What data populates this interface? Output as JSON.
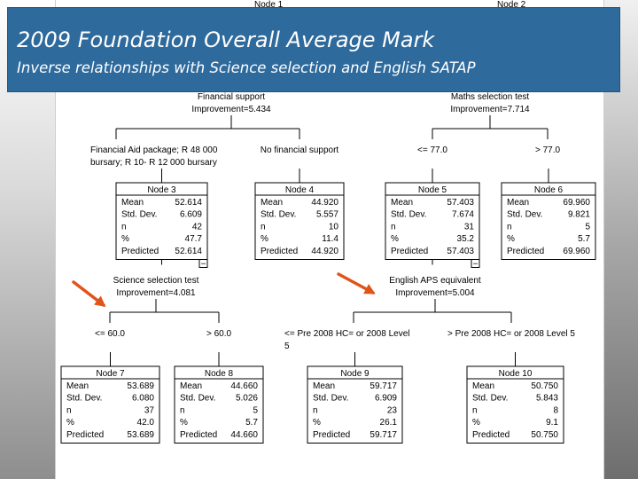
{
  "slide": {
    "title": "2009 Foundation Overall Average Mark",
    "subtitle": "Inverse relationships with Science selection and English SATAP"
  },
  "colors": {
    "banner": "#2e6a9c",
    "arrow": "#e0541a",
    "node_border": "#000000"
  },
  "tree": {
    "partial_top_nodes": [
      "Node 1",
      "Node 2"
    ],
    "splits": [
      {
        "id": "split-financial",
        "variable": "Financial support",
        "improvement": "Improvement=5.434",
        "left_branch": [
          "Financial Aid package; R 48 000",
          "bursary; R 10- R 12 000 bursary"
        ],
        "right_branch": [
          "No financial support"
        ]
      },
      {
        "id": "split-maths",
        "variable": "Maths selection test",
        "improvement": "Improvement=7.714",
        "left_branch": [
          "<= 77.0"
        ],
        "right_branch": [
          "> 77.0"
        ]
      },
      {
        "id": "split-science",
        "variable": "Science selection test",
        "improvement": "Improvement=4.081",
        "left_branch": [
          "<= 60.0"
        ],
        "right_branch": [
          "> 60.0"
        ]
      },
      {
        "id": "split-english",
        "variable": "English APS equivalent",
        "improvement": "Improvement=5.004",
        "left_branch": [
          "<= Pre 2008 HC=  or 2008 Level",
          "5"
        ],
        "right_branch": [
          "> Pre 2008 HC=  or 2008 Level 5"
        ]
      }
    ],
    "row_labels": [
      "Mean",
      "Std. Dev.",
      "n",
      "%",
      "Predicted"
    ],
    "nodes": [
      {
        "id": "node-3",
        "title": "Node 3",
        "values": [
          "52.614",
          "6.609",
          "42",
          "47.7",
          "52.614"
        ],
        "expanded": true
      },
      {
        "id": "node-4",
        "title": "Node 4",
        "values": [
          "44.920",
          "5.557",
          "10",
          "11.4",
          "44.920"
        ],
        "expanded": false
      },
      {
        "id": "node-5",
        "title": "Node 5",
        "values": [
          "57.403",
          "7.674",
          "31",
          "35.2",
          "57.403"
        ],
        "expanded": true
      },
      {
        "id": "node-6",
        "title": "Node 6",
        "values": [
          "69.960",
          "9.821",
          "5",
          "5.7",
          "69.960"
        ],
        "expanded": false
      },
      {
        "id": "node-7",
        "title": "Node 7",
        "values": [
          "53.689",
          "6.080",
          "37",
          "42.0",
          "53.689"
        ],
        "expanded": false
      },
      {
        "id": "node-8",
        "title": "Node 8",
        "values": [
          "44.660",
          "5.026",
          "5",
          "5.7",
          "44.660"
        ],
        "expanded": false
      },
      {
        "id": "node-9",
        "title": "Node 9",
        "values": [
          "59.717",
          "6.909",
          "23",
          "26.1",
          "59.717"
        ],
        "expanded": false
      },
      {
        "id": "node-10",
        "title": "Node 10",
        "values": [
          "50.750",
          "5.843",
          "8",
          "9.1",
          "50.750"
        ],
        "expanded": false
      }
    ],
    "collapse_symbol": "−"
  }
}
